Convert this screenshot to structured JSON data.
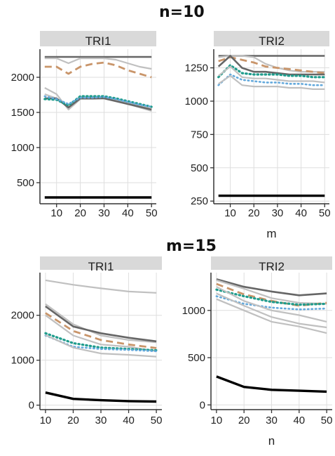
{
  "top_section": {
    "title": "n=10"
  },
  "bottom_section": {
    "title": "m=15"
  },
  "colors": {
    "dark_gray": "#666666",
    "light_gray": "#c0c0c0",
    "tan": "#c9956a",
    "teal": "#1f9c8c",
    "light_blue": "#63a9dc",
    "black": "#000000",
    "strip": "#d9d9d9",
    "grid": "#dedede"
  },
  "chart_data": [
    {
      "type": "line",
      "panel": "TRI1",
      "section": "n=10",
      "xlabel": "",
      "xticks": [
        10,
        20,
        30,
        40,
        50
      ],
      "yticks": [
        500,
        1000,
        1500,
        2000
      ],
      "xlim": [
        3,
        52
      ],
      "ylim": [
        200,
        2400
      ],
      "series": [
        {
          "style": "dark-solid",
          "x": [
            5,
            10,
            15,
            20,
            25,
            30,
            35,
            40,
            45,
            50
          ],
          "y": [
            2290,
            2290,
            2290,
            2290,
            2290,
            2290,
            2290,
            2290,
            2290,
            2290
          ]
        },
        {
          "style": "light-solid",
          "x": [
            5,
            10,
            15,
            20,
            25,
            30,
            35,
            40,
            45,
            50
          ],
          "y": [
            2270,
            2270,
            2200,
            2270,
            2270,
            2270,
            2250,
            2200,
            2150,
            2120
          ]
        },
        {
          "style": "tan-dash",
          "x": [
            5,
            10,
            15,
            20,
            25,
            30,
            35,
            40,
            45,
            50
          ],
          "y": [
            2150,
            2150,
            2050,
            2150,
            2190,
            2210,
            2170,
            2100,
            2050,
            2000
          ]
        },
        {
          "style": "light-solid",
          "x": [
            5,
            10,
            15,
            20,
            25,
            30,
            35,
            40,
            45,
            50
          ],
          "y": [
            1850,
            1760,
            1540,
            1690,
            1690,
            1700,
            1660,
            1620,
            1570,
            1520
          ]
        },
        {
          "style": "light-solid",
          "x": [
            5,
            10,
            15,
            20,
            25,
            30,
            35,
            40,
            45,
            50
          ],
          "y": [
            1760,
            1700,
            1580,
            1720,
            1720,
            1720,
            1680,
            1640,
            1590,
            1550
          ]
        },
        {
          "style": "dark-solid",
          "x": [
            5,
            10,
            15,
            20,
            25,
            30,
            35,
            40,
            45,
            50
          ],
          "y": [
            1700,
            1700,
            1570,
            1700,
            1700,
            1700,
            1660,
            1620,
            1580,
            1540
          ]
        },
        {
          "style": "teal-dot",
          "x": [
            5,
            10,
            15,
            20,
            25,
            30,
            35,
            40,
            45,
            50
          ],
          "y": [
            1690,
            1680,
            1600,
            1730,
            1730,
            1730,
            1700,
            1660,
            1620,
            1580
          ]
        },
        {
          "style": "blue-dot",
          "x": [
            5,
            10,
            15,
            20,
            25,
            30,
            35,
            40,
            45,
            50
          ],
          "y": [
            1730,
            1690,
            1620,
            1710,
            1710,
            1720,
            1690,
            1650,
            1610,
            1580
          ]
        },
        {
          "style": "black-thick",
          "x": [
            5,
            10,
            15,
            20,
            25,
            30,
            35,
            40,
            45,
            50
          ],
          "y": [
            290,
            290,
            290,
            290,
            290,
            290,
            290,
            290,
            290,
            290
          ]
        }
      ]
    },
    {
      "type": "line",
      "panel": "TRI2",
      "section": "n=10",
      "xlabel": "m",
      "xticks": [
        10,
        20,
        30,
        40,
        50
      ],
      "yticks": [
        250,
        500,
        750,
        1000,
        1250
      ],
      "xlim": [
        3,
        52
      ],
      "ylim": [
        230,
        1390
      ],
      "series": [
        {
          "style": "dark-solid",
          "x": [
            5,
            10,
            15,
            20,
            25,
            30,
            35,
            40,
            45,
            50
          ],
          "y": [
            1340,
            1340,
            1340,
            1340,
            1340,
            1340,
            1340,
            1340,
            1340,
            1340
          ]
        },
        {
          "style": "light-solid",
          "x": [
            5,
            10,
            15,
            20,
            25,
            30,
            35,
            40,
            45,
            50
          ],
          "y": [
            1330,
            1340,
            1340,
            1330,
            1280,
            1250,
            1230,
            1220,
            1220,
            1220
          ]
        },
        {
          "style": "tan-dash",
          "x": [
            5,
            10,
            15,
            20,
            25,
            30,
            35,
            40,
            45,
            50
          ],
          "y": [
            1300,
            1330,
            1310,
            1290,
            1260,
            1250,
            1240,
            1230,
            1220,
            1210
          ]
        },
        {
          "style": "dark-solid",
          "x": [
            5,
            10,
            15,
            20,
            25,
            30,
            35,
            40,
            45,
            50
          ],
          "y": [
            1260,
            1340,
            1250,
            1220,
            1220,
            1210,
            1200,
            1200,
            1200,
            1200
          ]
        },
        {
          "style": "teal-dot",
          "x": [
            5,
            10,
            15,
            20,
            25,
            30,
            35,
            40,
            45,
            50
          ],
          "y": [
            1180,
            1270,
            1210,
            1200,
            1200,
            1200,
            1190,
            1190,
            1180,
            1180
          ]
        },
        {
          "style": "light-solid",
          "x": [
            5,
            10,
            15,
            20,
            25,
            30,
            35,
            40,
            45,
            50
          ],
          "y": [
            1190,
            1260,
            1180,
            1170,
            1170,
            1160,
            1150,
            1150,
            1150,
            1140
          ]
        },
        {
          "style": "blue-dot",
          "x": [
            5,
            10,
            15,
            20,
            25,
            30,
            35,
            40,
            45,
            50
          ],
          "y": [
            1120,
            1200,
            1160,
            1150,
            1140,
            1140,
            1130,
            1130,
            1120,
            1120
          ]
        },
        {
          "style": "light-solid",
          "x": [
            5,
            10,
            15,
            20,
            25,
            30,
            35,
            40,
            45,
            50
          ],
          "y": [
            1130,
            1190,
            1120,
            1110,
            1110,
            1110,
            1100,
            1100,
            1090,
            1090
          ]
        },
        {
          "style": "black-thick",
          "x": [
            5,
            10,
            15,
            20,
            25,
            30,
            35,
            40,
            45,
            50
          ],
          "y": [
            290,
            290,
            290,
            290,
            290,
            290,
            290,
            290,
            290,
            290
          ]
        }
      ]
    },
    {
      "type": "line",
      "panel": "TRI1",
      "section": "m=15",
      "xlabel": "",
      "xticks": [
        10,
        20,
        30,
        40,
        50
      ],
      "yticks": [
        0,
        1000,
        2000
      ],
      "xlim": [
        8,
        52
      ],
      "ylim": [
        -100,
        2950
      ],
      "series": [
        {
          "style": "light-solid",
          "x": [
            10,
            20,
            30,
            40,
            50
          ],
          "y": [
            2780,
            2680,
            2600,
            2530,
            2500
          ]
        },
        {
          "style": "light-solid",
          "x": [
            10,
            20,
            30,
            40,
            50
          ],
          "y": [
            2250,
            1800,
            1550,
            1450,
            1400
          ]
        },
        {
          "style": "dark-solid",
          "x": [
            10,
            20,
            30,
            40,
            50
          ],
          "y": [
            2200,
            1750,
            1600,
            1500,
            1420
          ]
        },
        {
          "style": "tan-dash",
          "x": [
            10,
            20,
            30,
            40,
            50
          ],
          "y": [
            2050,
            1650,
            1450,
            1350,
            1270
          ]
        },
        {
          "style": "light-solid",
          "x": [
            10,
            20,
            30,
            40,
            50
          ],
          "y": [
            2000,
            1550,
            1350,
            1300,
            1200
          ]
        },
        {
          "style": "teal-dot",
          "x": [
            10,
            20,
            30,
            40,
            50
          ],
          "y": [
            1600,
            1380,
            1280,
            1250,
            1220
          ]
        },
        {
          "style": "blue-dot",
          "x": [
            10,
            20,
            30,
            40,
            50
          ],
          "y": [
            1550,
            1300,
            1250,
            1230,
            1200
          ]
        },
        {
          "style": "light-solid",
          "x": [
            10,
            20,
            30,
            40,
            50
          ],
          "y": [
            1560,
            1280,
            1150,
            1120,
            1080
          ]
        },
        {
          "style": "black-thick",
          "x": [
            10,
            20,
            30,
            40,
            50
          ],
          "y": [
            280,
            140,
            110,
            90,
            80
          ]
        }
      ]
    },
    {
      "type": "line",
      "panel": "TRI2",
      "section": "m=15",
      "xlabel": "n",
      "xticks": [
        10,
        20,
        30,
        40,
        50
      ],
      "yticks": [
        0,
        500,
        1000
      ],
      "xlim": [
        8,
        52
      ],
      "ylim": [
        -50,
        1400
      ],
      "series": [
        {
          "style": "dark-solid",
          "x": [
            10,
            20,
            30,
            40,
            50
          ],
          "y": [
            1330,
            1250,
            1200,
            1160,
            1180
          ]
        },
        {
          "style": "light-solid",
          "x": [
            10,
            20,
            30,
            40,
            50
          ],
          "y": [
            1320,
            1230,
            1130,
            1080,
            1070
          ]
        },
        {
          "style": "tan-dash",
          "x": [
            10,
            20,
            30,
            40,
            50
          ],
          "y": [
            1280,
            1170,
            1100,
            1050,
            1080
          ]
        },
        {
          "style": "teal-dot",
          "x": [
            10,
            20,
            30,
            40,
            50
          ],
          "y": [
            1220,
            1150,
            1090,
            1060,
            1070
          ]
        },
        {
          "style": "blue-dot",
          "x": [
            10,
            20,
            30,
            40,
            50
          ],
          "y": [
            1150,
            1070,
            1030,
            1010,
            1020
          ]
        },
        {
          "style": "light-solid",
          "x": [
            10,
            20,
            30,
            40,
            50
          ],
          "y": [
            1250,
            1100,
            1000,
            950,
            880
          ]
        },
        {
          "style": "light-solid",
          "x": [
            10,
            20,
            30,
            40,
            50
          ],
          "y": [
            1180,
            1050,
            930,
            860,
            820
          ]
        },
        {
          "style": "light-solid",
          "x": [
            10,
            20,
            30,
            40,
            50
          ],
          "y": [
            1120,
            1000,
            880,
            830,
            760
          ]
        },
        {
          "style": "black-thick",
          "x": [
            10,
            20,
            30,
            40,
            50
          ],
          "y": [
            300,
            190,
            160,
            150,
            140
          ]
        }
      ]
    }
  ]
}
